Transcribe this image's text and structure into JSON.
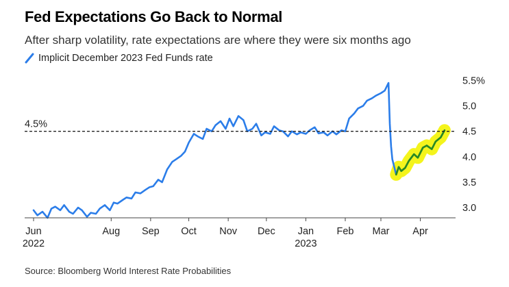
{
  "title": "Fed Expectations Go Back to Normal",
  "subtitle": "After sharp volatility, rate expectations are where they were six months ago",
  "source": "Source: Bloomberg World Interest Rate Probabilities",
  "colors": {
    "line": "#2b7de9",
    "highlight_line": "#2a8a1e",
    "highlight_fill": "#f4f41c",
    "reference": "#222222",
    "axis": "#444444"
  },
  "chart_data": {
    "type": "line",
    "title": "Fed Expectations Go Back to Normal",
    "subtitle": "After sharp volatility, rate expectations are where they were six months ago",
    "xlabel": "",
    "ylabel": "",
    "ylim": [
      2.8,
      5.6
    ],
    "y_ticks": [
      "3.0",
      "3.5",
      "4.0",
      "4.5",
      "5.0",
      "5.5%"
    ],
    "y_tick_values": [
      3.0,
      3.5,
      4.0,
      4.5,
      5.0,
      5.5
    ],
    "x_ticks": [
      {
        "label": "Jun",
        "year": "2022",
        "date": "2022-06-01"
      },
      {
        "label": "Aug",
        "year": "",
        "date": "2022-08-01"
      },
      {
        "label": "Sep",
        "year": "",
        "date": "2022-09-01"
      },
      {
        "label": "Oct",
        "year": "",
        "date": "2022-10-01"
      },
      {
        "label": "Nov",
        "year": "",
        "date": "2022-11-01"
      },
      {
        "label": "Dec",
        "year": "",
        "date": "2022-12-01"
      },
      {
        "label": "Jan",
        "year": "2023",
        "date": "2023-01-01"
      },
      {
        "label": "Feb",
        "year": "",
        "date": "2023-02-01"
      },
      {
        "label": "Mar",
        "year": "",
        "date": "2023-03-01"
      },
      {
        "label": "Apr",
        "year": "",
        "date": "2023-04-01"
      }
    ],
    "reference_line": {
      "value": 4.5,
      "label": "4.5%"
    },
    "grid": false,
    "legend_position": "top-left",
    "series": [
      {
        "name": "Implicit December 2023 Fed Funds rate",
        "x": [
          "2022-06-01",
          "2022-06-04",
          "2022-06-08",
          "2022-06-12",
          "2022-06-15",
          "2022-06-18",
          "2022-06-22",
          "2022-06-25",
          "2022-06-29",
          "2022-07-02",
          "2022-07-06",
          "2022-07-09",
          "2022-07-13",
          "2022-07-16",
          "2022-07-20",
          "2022-07-23",
          "2022-07-27",
          "2022-07-31",
          "2022-08-03",
          "2022-08-06",
          "2022-08-10",
          "2022-08-13",
          "2022-08-17",
          "2022-08-20",
          "2022-08-24",
          "2022-08-28",
          "2022-08-31",
          "2022-09-03",
          "2022-09-07",
          "2022-09-10",
          "2022-09-14",
          "2022-09-18",
          "2022-09-21",
          "2022-09-25",
          "2022-09-28",
          "2022-10-01",
          "2022-10-05",
          "2022-10-08",
          "2022-10-12",
          "2022-10-15",
          "2022-10-19",
          "2022-10-22",
          "2022-10-26",
          "2022-10-30",
          "2022-11-02",
          "2022-11-05",
          "2022-11-09",
          "2022-11-13",
          "2022-11-16",
          "2022-11-20",
          "2022-11-23",
          "2022-11-27",
          "2022-11-30",
          "2022-12-04",
          "2022-12-07",
          "2022-12-11",
          "2022-12-14",
          "2022-12-18",
          "2022-12-21",
          "2022-12-25",
          "2022-12-28",
          "2023-01-01",
          "2023-01-04",
          "2023-01-08",
          "2023-01-11",
          "2023-01-15",
          "2023-01-18",
          "2023-01-22",
          "2023-01-25",
          "2023-01-29",
          "2023-02-01",
          "2023-02-04",
          "2023-02-08",
          "2023-02-11",
          "2023-02-15",
          "2023-02-18",
          "2023-02-22",
          "2023-02-25",
          "2023-03-01",
          "2023-03-04",
          "2023-03-07",
          "2023-03-08",
          "2023-03-09",
          "2023-03-10",
          "2023-03-13",
          "2023-03-15",
          "2023-03-17",
          "2023-03-20",
          "2023-03-23",
          "2023-03-27",
          "2023-03-30",
          "2023-04-03",
          "2023-04-06",
          "2023-04-10",
          "2023-04-13",
          "2023-04-17",
          "2023-04-20"
        ],
        "values": [
          2.95,
          2.85,
          2.92,
          2.8,
          2.98,
          3.02,
          2.95,
          3.05,
          2.92,
          2.88,
          3.0,
          2.95,
          2.82,
          2.9,
          2.88,
          2.98,
          3.05,
          2.95,
          3.1,
          3.08,
          3.15,
          3.2,
          3.18,
          3.3,
          3.28,
          3.35,
          3.4,
          3.42,
          3.55,
          3.5,
          3.75,
          3.9,
          3.95,
          4.02,
          4.1,
          4.28,
          4.45,
          4.4,
          4.35,
          4.55,
          4.5,
          4.62,
          4.7,
          4.55,
          4.75,
          4.6,
          4.8,
          4.72,
          4.5,
          4.55,
          4.65,
          4.42,
          4.48,
          4.45,
          4.6,
          4.52,
          4.5,
          4.4,
          4.5,
          4.44,
          4.48,
          4.45,
          4.52,
          4.58,
          4.46,
          4.48,
          4.42,
          4.5,
          4.44,
          4.52,
          4.5,
          4.75,
          4.85,
          4.95,
          5.0,
          5.1,
          5.15,
          5.2,
          5.25,
          5.3,
          5.45,
          4.65,
          4.2,
          3.95,
          3.65,
          3.8,
          3.72,
          3.78,
          3.92,
          4.05,
          3.98,
          4.18,
          4.22,
          4.15,
          4.3,
          4.38,
          4.52
        ]
      }
    ],
    "highlight": {
      "from": "2023-03-13",
      "to": "2023-04-20"
    }
  }
}
